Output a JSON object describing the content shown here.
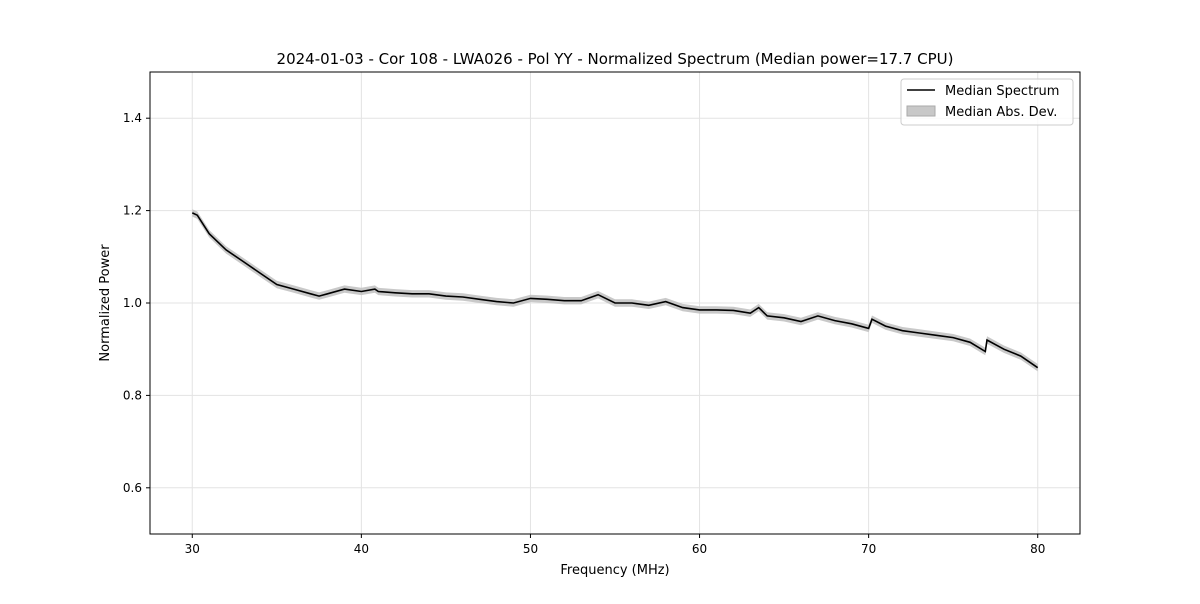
{
  "chart_data": {
    "type": "line",
    "title": "2024-01-03 - Cor 108 - LWA026 - Pol YY - Normalized Spectrum (Median power=17.7 CPU)",
    "xlabel": "Frequency (MHz)",
    "ylabel": "Normalized Power",
    "xlim": [
      27.5,
      82.5
    ],
    "ylim": [
      0.5,
      1.5
    ],
    "xticks": [
      30,
      40,
      50,
      60,
      70,
      80
    ],
    "xtick_labels": [
      "30",
      "40",
      "50",
      "60",
      "70",
      "80"
    ],
    "yticks": [
      0.6,
      0.8,
      1.0,
      1.2,
      1.4
    ],
    "ytick_labels": [
      "0.6",
      "0.8",
      "1.0",
      "1.2",
      "1.4"
    ],
    "grid": true,
    "legend_position": "top-right",
    "series": [
      {
        "name": "Median Spectrum",
        "color": "#000000",
        "x": [
          30,
          30.3,
          31,
          32,
          33,
          34,
          35,
          36,
          37,
          37.5,
          38,
          39,
          40,
          40.8,
          41,
          42,
          43,
          44,
          45,
          46,
          47,
          48,
          49,
          50,
          51,
          52,
          53,
          54,
          55,
          56,
          57,
          58,
          59,
          60,
          61,
          62,
          63,
          63.5,
          64,
          65,
          66,
          67,
          68,
          69,
          70,
          70.2,
          71,
          72,
          73,
          74,
          75,
          76,
          76.9,
          77,
          78,
          79,
          80
        ],
        "y": [
          1.195,
          1.19,
          1.15,
          1.115,
          1.09,
          1.065,
          1.04,
          1.03,
          1.02,
          1.015,
          1.02,
          1.03,
          1.025,
          1.03,
          1.025,
          1.022,
          1.02,
          1.02,
          1.015,
          1.013,
          1.008,
          1.003,
          1.0,
          1.01,
          1.008,
          1.005,
          1.005,
          1.018,
          1.0,
          1.0,
          0.995,
          1.003,
          0.99,
          0.985,
          0.985,
          0.984,
          0.978,
          0.99,
          0.972,
          0.968,
          0.96,
          0.972,
          0.962,
          0.955,
          0.945,
          0.965,
          0.95,
          0.94,
          0.935,
          0.93,
          0.925,
          0.915,
          0.895,
          0.92,
          0.9,
          0.885,
          0.86
        ]
      },
      {
        "name": "Median Abs. Dev.",
        "color": "#c8c8c8",
        "type": "band",
        "halfwidth": 0.008
      }
    ]
  }
}
